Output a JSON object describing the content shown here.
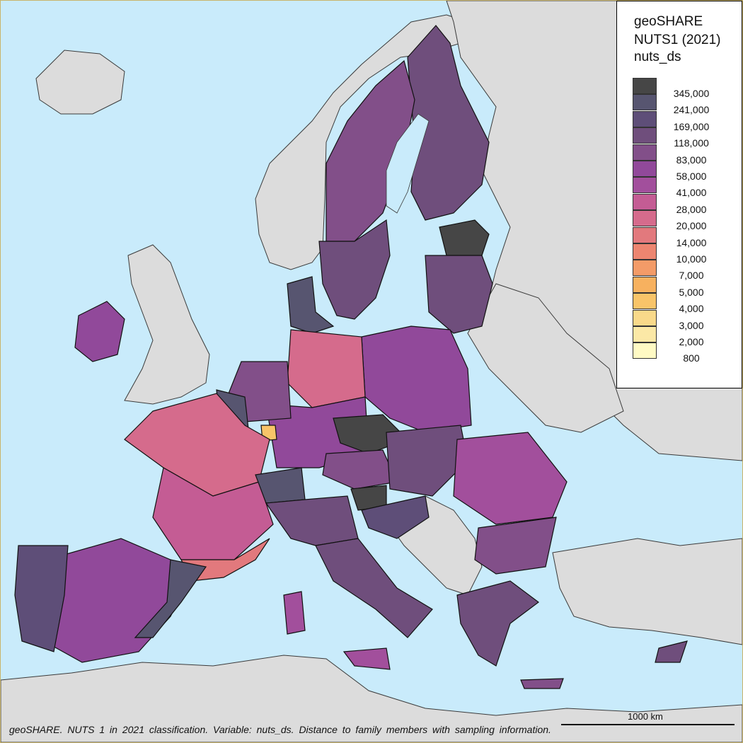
{
  "legend": {
    "title_lines": [
      "geoSHARE",
      "NUTS1 (2021)",
      "nuts_ds"
    ],
    "items": [
      {
        "label": "345,000",
        "color": "#464646"
      },
      {
        "label": "241,000",
        "color": "#575570"
      },
      {
        "label": "169,000",
        "color": "#5e4e78"
      },
      {
        "label": "118,000",
        "color": "#6f4e7c"
      },
      {
        "label": "83,000",
        "color": "#824f89"
      },
      {
        "label": "58,000",
        "color": "#91499a"
      },
      {
        "label": "41,000",
        "color": "#a24f9c"
      },
      {
        "label": "28,000",
        "color": "#c45c94"
      },
      {
        "label": "20,000",
        "color": "#d56b8c"
      },
      {
        "label": "14,000",
        "color": "#e2797d"
      },
      {
        "label": "10,000",
        "color": "#ec8570"
      },
      {
        "label": "7,000",
        "color": "#f39b68"
      },
      {
        "label": "5,000",
        "color": "#f7b15f"
      },
      {
        "label": "4,000",
        "color": "#f8c469"
      },
      {
        "label": "3,000",
        "color": "#f9d98a"
      },
      {
        "label": "2,000",
        "color": "#fbe8a6"
      },
      {
        "label": "800",
        "color": "#fffac4"
      }
    ]
  },
  "caption": "geoSHARE. NUTS 1 in 2021 classification. Variable: nuts_ds. Distance to family members with sampling information.",
  "scalebar": {
    "label": "1000 km"
  },
  "colors": {
    "sea": "#c9ebfb",
    "non_data_land": "#dcdcdc",
    "border": "#111111"
  }
}
